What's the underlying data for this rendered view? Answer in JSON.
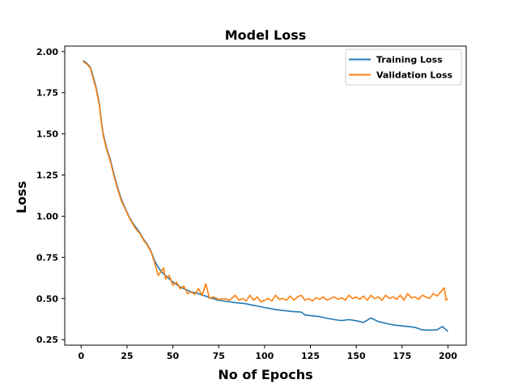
{
  "chart_data": {
    "type": "line",
    "title": "Model Loss",
    "xlabel": "No of Epochs",
    "ylabel": "Loss",
    "xlim": [
      -8.95,
      209.95
    ],
    "ylim": [
      0.2168,
      2.0332
    ],
    "xticks": [
      0,
      25,
      50,
      75,
      100,
      125,
      150,
      175,
      200
    ],
    "yticks": [
      0.25,
      0.5,
      0.75,
      1.0,
      1.25,
      1.5,
      1.75,
      2.0
    ],
    "ytick_labels": [
      "0.25",
      "0.50",
      "0.75",
      "1.00",
      "1.25",
      "1.50",
      "1.75",
      "2.00"
    ],
    "grid": false,
    "legend_position": "top-right",
    "series": [
      {
        "name": "Training Loss",
        "color": "#1f77b4",
        "points": [
          [
            1,
            1.945
          ],
          [
            3,
            1.93
          ],
          [
            5,
            1.905
          ],
          [
            6,
            1.87
          ],
          [
            8,
            1.79
          ],
          [
            10,
            1.68
          ],
          [
            11,
            1.58
          ],
          [
            12,
            1.5
          ],
          [
            14,
            1.41
          ],
          [
            16,
            1.34
          ],
          [
            18,
            1.25
          ],
          [
            20,
            1.17
          ],
          [
            22,
            1.1
          ],
          [
            24,
            1.05
          ],
          [
            26,
            1.0
          ],
          [
            28,
            0.96
          ],
          [
            30,
            0.93
          ],
          [
            32,
            0.9
          ],
          [
            34,
            0.86
          ],
          [
            36,
            0.83
          ],
          [
            38,
            0.79
          ],
          [
            40,
            0.73
          ],
          [
            42,
            0.69
          ],
          [
            44,
            0.66
          ],
          [
            46,
            0.64
          ],
          [
            48,
            0.62
          ],
          [
            50,
            0.6
          ],
          [
            52,
            0.585
          ],
          [
            54,
            0.57
          ],
          [
            56,
            0.56
          ],
          [
            58,
            0.55
          ],
          [
            60,
            0.54
          ],
          [
            62,
            0.535
          ],
          [
            64,
            0.53
          ],
          [
            66,
            0.52
          ],
          [
            68,
            0.515
          ],
          [
            70,
            0.505
          ],
          [
            72,
            0.5
          ],
          [
            75,
            0.49
          ],
          [
            78,
            0.485
          ],
          [
            81,
            0.48
          ],
          [
            84,
            0.475
          ],
          [
            87,
            0.472
          ],
          [
            90,
            0.468
          ],
          [
            93,
            0.46
          ],
          [
            96,
            0.455
          ],
          [
            100,
            0.445
          ],
          [
            104,
            0.437
          ],
          [
            108,
            0.43
          ],
          [
            112,
            0.425
          ],
          [
            116,
            0.42
          ],
          [
            120,
            0.418
          ],
          [
            122,
            0.4
          ],
          [
            126,
            0.395
          ],
          [
            130,
            0.39
          ],
          [
            134,
            0.38
          ],
          [
            138,
            0.372
          ],
          [
            142,
            0.366
          ],
          [
            146,
            0.372
          ],
          [
            150,
            0.365
          ],
          [
            154,
            0.355
          ],
          [
            158,
            0.382
          ],
          [
            162,
            0.36
          ],
          [
            166,
            0.35
          ],
          [
            170,
            0.34
          ],
          [
            174,
            0.335
          ],
          [
            178,
            0.33
          ],
          [
            182,
            0.325
          ],
          [
            186,
            0.31
          ],
          [
            190,
            0.308
          ],
          [
            194,
            0.31
          ],
          [
            197,
            0.33
          ],
          [
            200,
            0.3
          ]
        ]
      },
      {
        "name": "Validation Loss",
        "color": "#ff7f0e",
        "points": [
          [
            1,
            1.94
          ],
          [
            3,
            1.925
          ],
          [
            5,
            1.9
          ],
          [
            6,
            1.86
          ],
          [
            8,
            1.78
          ],
          [
            10,
            1.67
          ],
          [
            11,
            1.57
          ],
          [
            12,
            1.49
          ],
          [
            14,
            1.4
          ],
          [
            16,
            1.33
          ],
          [
            18,
            1.24
          ],
          [
            20,
            1.16
          ],
          [
            22,
            1.09
          ],
          [
            24,
            1.045
          ],
          [
            26,
            0.995
          ],
          [
            28,
            0.955
          ],
          [
            30,
            0.92
          ],
          [
            32,
            0.895
          ],
          [
            34,
            0.855
          ],
          [
            36,
            0.825
          ],
          [
            38,
            0.785
          ],
          [
            40,
            0.72
          ],
          [
            42,
            0.64
          ],
          [
            44,
            0.67
          ],
          [
            45,
            0.685
          ],
          [
            46,
            0.62
          ],
          [
            48,
            0.64
          ],
          [
            50,
            0.58
          ],
          [
            52,
            0.6
          ],
          [
            54,
            0.56
          ],
          [
            56,
            0.575
          ],
          [
            58,
            0.53
          ],
          [
            60,
            0.54
          ],
          [
            62,
            0.525
          ],
          [
            64,
            0.56
          ],
          [
            66,
            0.52
          ],
          [
            68,
            0.59
          ],
          [
            70,
            0.5
          ],
          [
            72,
            0.51
          ],
          [
            75,
            0.495
          ],
          [
            78,
            0.5
          ],
          [
            81,
            0.49
          ],
          [
            84,
            0.52
          ],
          [
            86,
            0.49
          ],
          [
            88,
            0.5
          ],
          [
            90,
            0.485
          ],
          [
            92,
            0.52
          ],
          [
            94,
            0.49
          ],
          [
            96,
            0.51
          ],
          [
            98,
            0.48
          ],
          [
            100,
            0.49
          ],
          [
            102,
            0.5
          ],
          [
            104,
            0.485
          ],
          [
            106,
            0.52
          ],
          [
            108,
            0.495
          ],
          [
            110,
            0.5
          ],
          [
            112,
            0.49
          ],
          [
            114,
            0.515
          ],
          [
            116,
            0.49
          ],
          [
            118,
            0.51
          ],
          [
            120,
            0.52
          ],
          [
            122,
            0.49
          ],
          [
            124,
            0.5
          ],
          [
            126,
            0.485
          ],
          [
            128,
            0.505
          ],
          [
            130,
            0.495
          ],
          [
            132,
            0.51
          ],
          [
            134,
            0.49
          ],
          [
            136,
            0.5
          ],
          [
            138,
            0.51
          ],
          [
            140,
            0.495
          ],
          [
            142,
            0.505
          ],
          [
            144,
            0.49
          ],
          [
            146,
            0.52
          ],
          [
            148,
            0.5
          ],
          [
            150,
            0.51
          ],
          [
            152,
            0.495
          ],
          [
            154,
            0.515
          ],
          [
            156,
            0.49
          ],
          [
            158,
            0.52
          ],
          [
            160,
            0.5
          ],
          [
            162,
            0.51
          ],
          [
            164,
            0.49
          ],
          [
            166,
            0.52
          ],
          [
            168,
            0.5
          ],
          [
            170,
            0.51
          ],
          [
            172,
            0.495
          ],
          [
            174,
            0.52
          ],
          [
            176,
            0.49
          ],
          [
            178,
            0.53
          ],
          [
            180,
            0.505
          ],
          [
            182,
            0.51
          ],
          [
            184,
            0.495
          ],
          [
            186,
            0.52
          ],
          [
            188,
            0.51
          ],
          [
            190,
            0.5
          ],
          [
            192,
            0.53
          ],
          [
            194,
            0.515
          ],
          [
            196,
            0.54
          ],
          [
            198,
            0.565
          ],
          [
            199,
            0.49
          ],
          [
            200,
            0.5
          ]
        ]
      }
    ]
  }
}
